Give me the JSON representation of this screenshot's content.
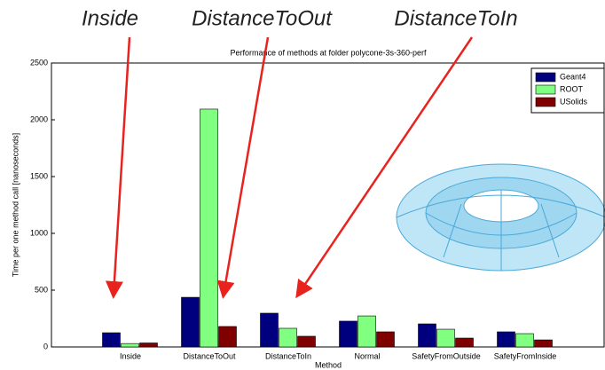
{
  "chart_data": {
    "type": "bar",
    "title": "Performance of methods at folder polycone-3s-360-perf",
    "x_label": "Method",
    "y_label": "Time per one method call [nanoseconds]",
    "categories": [
      "Inside",
      "DistanceToOut",
      "DistanceToIn",
      "Normal",
      "SafetyFromOutside",
      "SafetyFromInside"
    ],
    "series": [
      {
        "name": "Geant4",
        "color": "#00007f",
        "values": [
          125,
          437,
          297,
          227,
          203,
          133
        ]
      },
      {
        "name": "ROOT",
        "color": "#80ff80",
        "values": [
          30,
          2094,
          164,
          273,
          156,
          117
        ]
      },
      {
        "name": "USolids",
        "color": "#800000",
        "values": [
          35,
          180,
          94,
          133,
          78,
          62
        ]
      }
    ],
    "ylim": [
      0,
      2500
    ],
    "yticks": [
      0,
      500,
      1000,
      1500,
      2000,
      2500
    ],
    "legend": "upper right",
    "annotations": [
      "Inside",
      "DistanceToOut",
      "DistanceToIn"
    ]
  }
}
